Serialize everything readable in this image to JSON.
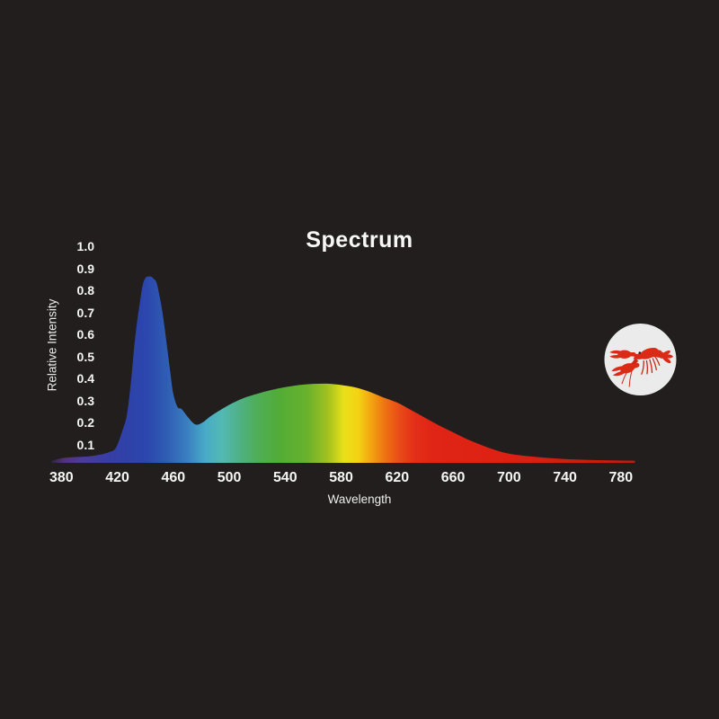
{
  "title": "Spectrum",
  "background_color": "#211e1d",
  "badge": {
    "shape": "circle",
    "background": "#ebebeb",
    "icon": "lobster-icon",
    "icon_color": "#da2b17",
    "icon_stroke_color": "#cc2716",
    "eye_color": "#1d1b1a"
  },
  "chart_data": {
    "type": "area",
    "title": "Spectrum",
    "xlabel": "Wavelength",
    "ylabel": "Relative Intensity",
    "xlim": [
      373,
      790
    ],
    "ylim": [
      0,
      1.0
    ],
    "grid": false,
    "legend": false,
    "x_ticks": [
      380,
      420,
      460,
      500,
      540,
      580,
      620,
      660,
      700,
      740,
      780
    ],
    "y_ticks": [
      0.1,
      0.2,
      0.3,
      0.4,
      0.5,
      0.6,
      0.7,
      0.8,
      0.9,
      1.0
    ],
    "series": [
      {
        "name": "relative-intensity",
        "x": [
          373,
          380,
          390,
          400,
          408,
          414,
          419,
          424,
          427,
          430,
          432,
          434,
          436,
          438,
          440,
          442,
          444,
          446,
          448,
          450,
          452,
          454,
          456,
          458,
          460,
          463,
          466,
          471,
          476,
          481,
          486,
          492,
          500,
          510,
          520,
          530,
          540,
          550,
          560,
          570,
          580,
          590,
          600,
          610,
          620,
          630,
          640,
          650,
          660,
          670,
          680,
          690,
          700,
          710,
          720,
          730,
          740,
          750,
          760,
          770,
          780,
          790
        ],
        "y": [
          0.025,
          0.037,
          0.043,
          0.046,
          0.054,
          0.065,
          0.085,
          0.17,
          0.24,
          0.4,
          0.54,
          0.65,
          0.74,
          0.82,
          0.855,
          0.862,
          0.862,
          0.852,
          0.835,
          0.78,
          0.71,
          0.62,
          0.52,
          0.42,
          0.33,
          0.27,
          0.26,
          0.22,
          0.19,
          0.2,
          0.225,
          0.25,
          0.28,
          0.31,
          0.33,
          0.347,
          0.36,
          0.37,
          0.375,
          0.376,
          0.37,
          0.359,
          0.34,
          0.314,
          0.29,
          0.256,
          0.221,
          0.186,
          0.155,
          0.124,
          0.098,
          0.075,
          0.058,
          0.049,
          0.043,
          0.038,
          0.034,
          0.031,
          0.029,
          0.028,
          0.027,
          0.026
        ]
      }
    ],
    "gradient": [
      {
        "wavelength": 373,
        "color": "#2d2540"
      },
      {
        "wavelength": 382,
        "color": "#53317e"
      },
      {
        "wavelength": 395,
        "color": "#4c3c96"
      },
      {
        "wavelength": 410,
        "color": "#3a3da4"
      },
      {
        "wavelength": 425,
        "color": "#2f41a8"
      },
      {
        "wavelength": 440,
        "color": "#2b46ad"
      },
      {
        "wavelength": 455,
        "color": "#2f5cb3"
      },
      {
        "wavelength": 470,
        "color": "#3a7fc0"
      },
      {
        "wavelength": 483,
        "color": "#48abc7"
      },
      {
        "wavelength": 495,
        "color": "#53b9b2"
      },
      {
        "wavelength": 508,
        "color": "#4fb083"
      },
      {
        "wavelength": 520,
        "color": "#4fae57"
      },
      {
        "wavelength": 535,
        "color": "#52ac38"
      },
      {
        "wavelength": 555,
        "color": "#68b12c"
      },
      {
        "wavelength": 570,
        "color": "#9fc120"
      },
      {
        "wavelength": 582,
        "color": "#e8e019"
      },
      {
        "wavelength": 592,
        "color": "#f4d314"
      },
      {
        "wavelength": 602,
        "color": "#f2a111"
      },
      {
        "wavelength": 612,
        "color": "#ee7013"
      },
      {
        "wavelength": 622,
        "color": "#e84a17"
      },
      {
        "wavelength": 632,
        "color": "#e33018"
      },
      {
        "wavelength": 645,
        "color": "#e02516"
      },
      {
        "wavelength": 700,
        "color": "#dc2114"
      },
      {
        "wavelength": 790,
        "color": "#c01b10"
      }
    ]
  }
}
